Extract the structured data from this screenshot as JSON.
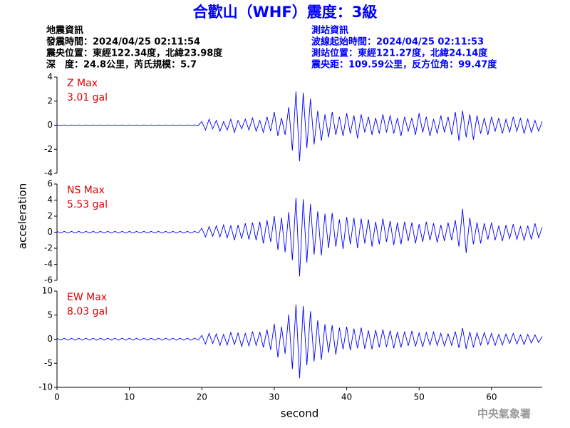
{
  "header": {
    "title": "合歡山（WHF）震度：3級",
    "left": [
      "地震資訊",
      "發震時間：2024/04/25 02:11:54",
      "震央位置：東經122.34度，北緯23.98度",
      "深　度：24.8公里，芮氏規模：5.7"
    ],
    "right": [
      "測站資訊",
      "波線起始時間：2024/04/25 02:11:53",
      "測站位置：東經121.27度，北緯24.14度",
      "震央距：109.59公里，反方位角：99.47度"
    ]
  },
  "ylabel": "acceleration",
  "watermark": "中央氣象署",
  "chart_data": [
    {
      "type": "line",
      "color": "#0000ff",
      "annotations": [
        "Z Max",
        "3.01 gal"
      ],
      "xlim": [
        0,
        67
      ],
      "ylim": [
        -4,
        4
      ],
      "yticks": [
        -4,
        -2,
        0,
        2,
        4
      ],
      "x": [
        0,
        0.5,
        1,
        1.5,
        2,
        2.5,
        3,
        3.5,
        4,
        4.5,
        5,
        5.5,
        6,
        6.5,
        7,
        7.5,
        8,
        8.5,
        9,
        9.5,
        10,
        10.5,
        11,
        11.5,
        12,
        12.5,
        13,
        13.5,
        14,
        14.5,
        15,
        15.5,
        16,
        16.5,
        17,
        17.5,
        18,
        18.5,
        19,
        19.5,
        20,
        20.5,
        21,
        21.5,
        22,
        22.5,
        23,
        23.5,
        24,
        24.5,
        25,
        25.5,
        26,
        26.5,
        27,
        27.5,
        28,
        28.5,
        29,
        29.5,
        30,
        30.5,
        31,
        31.5,
        32,
        32.5,
        33,
        33.5,
        34,
        34.5,
        35,
        35.5,
        36,
        36.5,
        37,
        37.5,
        38,
        38.5,
        39,
        39.5,
        40,
        40.5,
        41,
        41.5,
        42,
        42.5,
        43,
        43.5,
        44,
        44.5,
        45,
        45.5,
        46,
        46.5,
        47,
        47.5,
        48,
        48.5,
        49,
        49.5,
        50,
        50.5,
        51,
        51.5,
        52,
        52.5,
        53,
        53.5,
        54,
        54.5,
        55,
        55.5,
        56,
        56.5,
        57,
        57.5,
        58,
        58.5,
        59,
        59.5,
        60,
        60.5,
        61,
        61.5,
        62,
        62.5,
        63,
        63.5,
        64,
        64.5,
        65,
        65.5,
        66,
        66.5,
        67
      ],
      "values": [
        0.02,
        -0.02,
        0.02,
        -0.02,
        0.02,
        -0.02,
        0.02,
        -0.02,
        0.02,
        -0.02,
        0.02,
        -0.02,
        0.02,
        -0.02,
        0.02,
        -0.02,
        0.02,
        -0.02,
        0.02,
        -0.02,
        0.02,
        -0.02,
        0.02,
        -0.02,
        0.02,
        -0.02,
        0.02,
        -0.02,
        0.02,
        -0.02,
        0.02,
        -0.02,
        0.02,
        -0.02,
        0.02,
        -0.02,
        0.02,
        -0.02,
        0.02,
        -0.02,
        0.3,
        -0.4,
        0.5,
        -0.3,
        0.4,
        -0.5,
        0.3,
        -0.4,
        0.5,
        -0.6,
        0.4,
        -0.3,
        0.5,
        -0.4,
        0.6,
        -0.5,
        0.4,
        -0.6,
        0.7,
        -0.5,
        1.1,
        -0.9,
        0.6,
        -0.8,
        1.5,
        -2.1,
        2.8,
        -3.0,
        2.7,
        -1.9,
        2.2,
        -1.6,
        1.2,
        -1.3,
        0.9,
        -1.0,
        1.1,
        -0.8,
        0.7,
        -0.9,
        1.0,
        -0.7,
        0.8,
        -1.1,
        0.9,
        -0.6,
        0.7,
        -0.8,
        0.6,
        -0.7,
        0.9,
        -0.6,
        0.8,
        -0.7,
        0.6,
        -0.9,
        0.7,
        -0.5,
        0.6,
        -0.8,
        1.0,
        -0.6,
        0.7,
        -0.9,
        0.5,
        -0.7,
        0.8,
        -0.6,
        0.7,
        -0.8,
        1.1,
        -1.3,
        1.2,
        -1.0,
        0.9,
        -1.2,
        0.8,
        -0.7,
        0.6,
        -0.8,
        0.7,
        -0.5,
        0.6,
        -0.7,
        0.5,
        -0.6,
        0.7,
        -0.5,
        0.6,
        -0.7,
        0.5,
        -0.6,
        0.4,
        -0.5,
        0.3
      ]
    },
    {
      "type": "line",
      "color": "#0000ff",
      "annotations": [
        "NS Max",
        "5.53 gal"
      ],
      "xlim": [
        0,
        67
      ],
      "ylim": [
        -6,
        6
      ],
      "yticks": [
        -6,
        -4,
        -2,
        0,
        2,
        4,
        6
      ],
      "x": [
        0,
        0.5,
        1,
        1.5,
        2,
        2.5,
        3,
        3.5,
        4,
        4.5,
        5,
        5.5,
        6,
        6.5,
        7,
        7.5,
        8,
        8.5,
        9,
        9.5,
        10,
        10.5,
        11,
        11.5,
        12,
        12.5,
        13,
        13.5,
        14,
        14.5,
        15,
        15.5,
        16,
        16.5,
        17,
        17.5,
        18,
        18.5,
        19,
        19.5,
        20,
        20.5,
        21,
        21.5,
        22,
        22.5,
        23,
        23.5,
        24,
        24.5,
        25,
        25.5,
        26,
        26.5,
        27,
        27.5,
        28,
        28.5,
        29,
        29.5,
        30,
        30.5,
        31,
        31.5,
        32,
        32.5,
        33,
        33.5,
        34,
        34.5,
        35,
        35.5,
        36,
        36.5,
        37,
        37.5,
        38,
        38.5,
        39,
        39.5,
        40,
        40.5,
        41,
        41.5,
        42,
        42.5,
        43,
        43.5,
        44,
        44.5,
        45,
        45.5,
        46,
        46.5,
        47,
        47.5,
        48,
        48.5,
        49,
        49.5,
        50,
        50.5,
        51,
        51.5,
        52,
        52.5,
        53,
        53.5,
        54,
        54.5,
        55,
        55.5,
        56,
        56.5,
        57,
        57.5,
        58,
        58.5,
        59,
        59.5,
        60,
        60.5,
        61,
        61.5,
        62,
        62.5,
        63,
        63.5,
        64,
        64.5,
        65,
        65.5,
        66,
        66.5,
        67
      ],
      "values": [
        0.1,
        -0.1,
        0.1,
        -0.1,
        0.1,
        -0.1,
        0.1,
        -0.1,
        0.1,
        -0.1,
        0.1,
        -0.1,
        0.1,
        -0.1,
        0.1,
        -0.1,
        0.1,
        -0.1,
        0.1,
        -0.1,
        0.1,
        -0.1,
        0.1,
        -0.1,
        0.1,
        -0.1,
        0.1,
        -0.1,
        0.1,
        -0.1,
        0.1,
        -0.1,
        0.1,
        -0.1,
        0.1,
        -0.1,
        0.1,
        -0.1,
        0.1,
        -0.1,
        0.5,
        -0.6,
        0.7,
        -0.5,
        0.8,
        -0.6,
        0.9,
        -0.7,
        0.8,
        -1.0,
        0.9,
        -0.8,
        1.1,
        -0.9,
        1.2,
        -1.0,
        1.3,
        -1.4,
        1.5,
        -1.2,
        2.0,
        -2.2,
        1.8,
        -2.5,
        2.5,
        -3.5,
        4.3,
        -5.5,
        4.1,
        -3.8,
        3.5,
        -2.8,
        2.6,
        -2.9,
        2.3,
        -2.0,
        2.4,
        -1.8,
        1.6,
        -2.1,
        1.9,
        -1.5,
        1.8,
        -2.0,
        1.7,
        -1.4,
        1.6,
        -1.8,
        1.3,
        -1.5,
        1.7,
        -1.2,
        1.4,
        -1.6,
        1.2,
        -1.5,
        1.3,
        -1.1,
        1.2,
        -1.4,
        1.0,
        -1.2,
        1.3,
        -1.0,
        1.1,
        -1.3,
        0.9,
        -1.1,
        1.2,
        -1.0,
        1.5,
        -1.8,
        2.9,
        -2.6,
        1.8,
        -1.5,
        1.2,
        -1.4,
        1.1,
        -0.9,
        1.2,
        -1.0,
        0.8,
        -1.1,
        0.9,
        -0.8,
        1.0,
        -0.9,
        0.7,
        -1.0,
        0.8,
        -0.9,
        1.1,
        -0.7,
        0.6
      ]
    },
    {
      "type": "line",
      "color": "#0000ff",
      "annotations": [
        "EW Max",
        "8.03 gal"
      ],
      "xlabel": "second",
      "xlim": [
        0,
        67
      ],
      "ylim": [
        -10,
        10
      ],
      "yticks": [
        -10,
        -5,
        0,
        5,
        10
      ],
      "xticks": [
        0,
        10,
        20,
        30,
        40,
        50,
        60
      ],
      "x": [
        0,
        0.5,
        1,
        1.5,
        2,
        2.5,
        3,
        3.5,
        4,
        4.5,
        5,
        5.5,
        6,
        6.5,
        7,
        7.5,
        8,
        8.5,
        9,
        9.5,
        10,
        10.5,
        11,
        11.5,
        12,
        12.5,
        13,
        13.5,
        14,
        14.5,
        15,
        15.5,
        16,
        16.5,
        17,
        17.5,
        18,
        18.5,
        19,
        19.5,
        20,
        20.5,
        21,
        21.5,
        22,
        22.5,
        23,
        23.5,
        24,
        24.5,
        25,
        25.5,
        26,
        26.5,
        27,
        27.5,
        28,
        28.5,
        29,
        29.5,
        30,
        30.5,
        31,
        31.5,
        32,
        32.5,
        33,
        33.5,
        34,
        34.5,
        35,
        35.5,
        36,
        36.5,
        37,
        37.5,
        38,
        38.5,
        39,
        39.5,
        40,
        40.5,
        41,
        41.5,
        42,
        42.5,
        43,
        43.5,
        44,
        44.5,
        45,
        45.5,
        46,
        46.5,
        47,
        47.5,
        48,
        48.5,
        49,
        49.5,
        50,
        50.5,
        51,
        51.5,
        52,
        52.5,
        53,
        53.5,
        54,
        54.5,
        55,
        55.5,
        56,
        56.5,
        57,
        57.5,
        58,
        58.5,
        59,
        59.5,
        60,
        60.5,
        61,
        61.5,
        62,
        62.5,
        63,
        63.5,
        64,
        64.5,
        65,
        65.5,
        66,
        66.5,
        67
      ],
      "values": [
        0.2,
        -0.2,
        0.2,
        -0.2,
        0.2,
        -0.2,
        0.2,
        -0.2,
        0.2,
        -0.2,
        0.2,
        -0.2,
        0.2,
        -0.2,
        0.2,
        -0.2,
        0.2,
        -0.2,
        0.2,
        -0.2,
        0.2,
        -0.2,
        0.2,
        -0.2,
        0.2,
        -0.2,
        0.2,
        -0.2,
        0.2,
        -0.2,
        0.2,
        -0.2,
        0.2,
        -0.2,
        0.2,
        -0.2,
        0.2,
        -0.2,
        0.2,
        -0.2,
        0.8,
        -1.0,
        1.2,
        -0.9,
        1.1,
        -1.3,
        1.0,
        -1.2,
        1.4,
        -1.1,
        1.3,
        -1.5,
        1.2,
        -1.4,
        1.6,
        -1.3,
        1.5,
        -1.7,
        2.0,
        -2.2,
        3.2,
        -3.8,
        2.6,
        -3.0,
        5.1,
        -6.2,
        7.2,
        -8.1,
        6.9,
        -5.4,
        5.8,
        -4.6,
        3.9,
        -4.3,
        3.1,
        -2.8,
        2.9,
        -3.2,
        2.4,
        -2.1,
        2.6,
        -2.3,
        2.2,
        -1.9,
        2.4,
        -2.0,
        1.8,
        -2.1,
        1.9,
        -1.7,
        2.0,
        -1.6,
        1.8,
        -1.9,
        1.5,
        -1.7,
        1.6,
        -1.4,
        1.7,
        -1.5,
        1.3,
        -1.6,
        1.4,
        -1.2,
        1.5,
        -1.3,
        1.2,
        -1.4,
        1.1,
        -1.3,
        1.6,
        -1.8,
        2.3,
        -2.0,
        1.5,
        -1.7,
        1.3,
        -1.2,
        1.4,
        -1.1,
        1.2,
        -1.3,
        1.0,
        -1.2,
        1.1,
        -0.9,
        1.2,
        -1.0,
        0.9,
        -1.1,
        1.0,
        -0.8,
        0.9,
        -0.7,
        0.6
      ]
    }
  ]
}
